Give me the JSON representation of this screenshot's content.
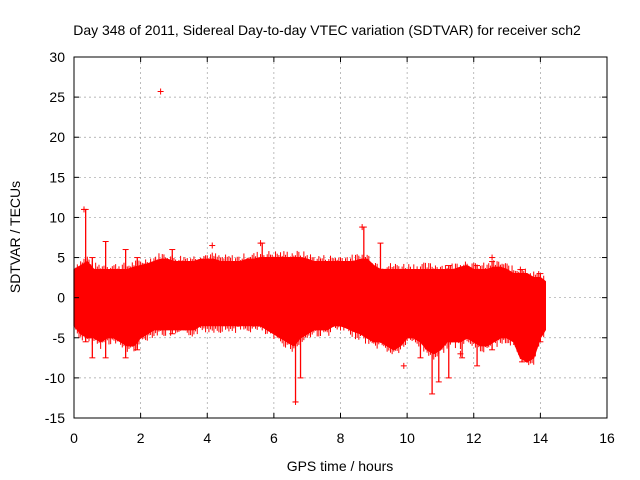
{
  "chart_data": {
    "type": "scatter",
    "title": "Day 348 of 2011, Sidereal Day-to-day VTEC variation (SDTVAR) for receiver sch2",
    "xlabel": "GPS time / hours",
    "ylabel": "SDTVAR / TECUs",
    "xlim": [
      0,
      16
    ],
    "ylim": [
      -15,
      30
    ],
    "xticks": [
      0,
      2,
      4,
      6,
      8,
      10,
      12,
      14,
      16
    ],
    "yticks": [
      -15,
      -10,
      -5,
      0,
      5,
      10,
      15,
      20,
      25,
      30
    ],
    "grid": true,
    "marker": "+",
    "series": [
      {
        "name": "sch2",
        "color": "#ff0000",
        "band": {
          "x": [
            0,
            0.2,
            0.4,
            0.6,
            0.8,
            1.0,
            1.2,
            1.4,
            1.6,
            1.8,
            2.0,
            2.2,
            2.4,
            2.6,
            2.8,
            3.0,
            3.2,
            3.4,
            3.6,
            3.8,
            4.0,
            4.2,
            4.4,
            4.6,
            4.8,
            5.0,
            5.2,
            5.4,
            5.6,
            5.8,
            6.0,
            6.2,
            6.4,
            6.6,
            6.8,
            7.0,
            7.2,
            7.4,
            7.6,
            7.8,
            8.0,
            8.2,
            8.4,
            8.6,
            8.8,
            9.0,
            9.2,
            9.4,
            9.6,
            9.8,
            10.0,
            10.2,
            10.4,
            10.6,
            10.8,
            11.0,
            11.2,
            11.4,
            11.6,
            11.8,
            12.0,
            12.2,
            12.4,
            12.6,
            12.8,
            13.0,
            13.2,
            13.4,
            13.6,
            13.8,
            14.0,
            14.15
          ],
          "upper": [
            3.5,
            4.0,
            4.5,
            3.5,
            3.5,
            3.5,
            3.5,
            3.5,
            3.5,
            3.8,
            4.0,
            4.2,
            4.5,
            4.8,
            4.8,
            4.5,
            4.5,
            4.5,
            4.5,
            4.8,
            4.8,
            4.8,
            4.5,
            4.5,
            4.5,
            4.5,
            4.8,
            4.8,
            5.0,
            5.0,
            5.0,
            5.0,
            5.0,
            5.0,
            5.0,
            4.8,
            4.5,
            4.5,
            4.5,
            4.5,
            4.5,
            4.5,
            4.5,
            4.8,
            4.8,
            4.0,
            3.5,
            3.5,
            3.5,
            3.5,
            3.5,
            3.5,
            3.5,
            3.5,
            3.5,
            3.5,
            3.5,
            3.5,
            3.8,
            4.0,
            3.5,
            3.5,
            3.5,
            3.8,
            3.8,
            3.5,
            3.0,
            3.0,
            3.0,
            2.5,
            2.5,
            2.0
          ],
          "lower": [
            -3.5,
            -4.5,
            -5.0,
            -5.0,
            -5.5,
            -5.0,
            -5.0,
            -5.5,
            -6.0,
            -6.0,
            -5.0,
            -4.5,
            -4.0,
            -4.0,
            -4.0,
            -4.0,
            -4.0,
            -4.0,
            -4.0,
            -3.5,
            -3.5,
            -3.5,
            -3.5,
            -3.5,
            -3.5,
            -3.5,
            -3.5,
            -3.5,
            -3.5,
            -4.0,
            -4.5,
            -5.0,
            -5.5,
            -6.0,
            -5.0,
            -4.5,
            -4.0,
            -4.0,
            -4.0,
            -3.5,
            -3.5,
            -3.8,
            -4.2,
            -4.5,
            -5.0,
            -5.5,
            -5.5,
            -6.0,
            -6.5,
            -6.0,
            -5.0,
            -5.0,
            -5.5,
            -6.5,
            -7.0,
            -6.5,
            -5.5,
            -5.5,
            -5.5,
            -5.0,
            -5.5,
            -6.0,
            -6.0,
            -5.5,
            -5.0,
            -5.0,
            -5.5,
            -7.5,
            -8.0,
            -7.5,
            -5.0,
            -4.0
          ]
        },
        "spikes": [
          {
            "x": 0.35,
            "lo": -5.5,
            "hi": 11.0
          },
          {
            "x": 0.55,
            "lo": -7.5,
            "hi": 5.0
          },
          {
            "x": 0.95,
            "lo": -7.5,
            "hi": 7.0
          },
          {
            "x": 1.55,
            "lo": -7.5,
            "hi": 6.0
          },
          {
            "x": 1.9,
            "lo": -6.5,
            "hi": 5.0
          },
          {
            "x": 2.95,
            "lo": -4.5,
            "hi": 6.0
          },
          {
            "x": 5.65,
            "lo": -3.5,
            "hi": 6.8
          },
          {
            "x": 6.65,
            "lo": -13.0,
            "hi": 5.0
          },
          {
            "x": 6.8,
            "lo": -10.0,
            "hi": 4.5
          },
          {
            "x": 8.7,
            "lo": -3.5,
            "hi": 8.8
          },
          {
            "x": 9.2,
            "lo": -5.5,
            "hi": 6.8
          },
          {
            "x": 10.4,
            "lo": -7.5,
            "hi": 3.5
          },
          {
            "x": 10.75,
            "lo": -12.0,
            "hi": 3.5
          },
          {
            "x": 10.95,
            "lo": -10.5,
            "hi": 3.5
          },
          {
            "x": 11.25,
            "lo": -10.0,
            "hi": 4.0
          },
          {
            "x": 11.65,
            "lo": -7.5,
            "hi": 3.5
          },
          {
            "x": 12.1,
            "lo": -8.5,
            "hi": 4.0
          },
          {
            "x": 12.55,
            "lo": -6.5,
            "hi": 4.5
          },
          {
            "x": 13.45,
            "lo": -8.0,
            "hi": 3.5
          },
          {
            "x": 14.0,
            "lo": -5.5,
            "hi": 3.0
          }
        ],
        "points": [
          {
            "x": 2.6,
            "y": 25.7
          },
          {
            "x": 4.15,
            "y": 6.5
          },
          {
            "x": 5.6,
            "y": 6.8
          },
          {
            "x": 8.65,
            "y": 8.8
          },
          {
            "x": 9.9,
            "y": -8.5
          },
          {
            "x": 12.55,
            "y": 5.0
          },
          {
            "x": 13.4,
            "y": 3.5
          },
          {
            "x": 11.6,
            "y": -7.0
          },
          {
            "x": 6.65,
            "y": -13.0
          },
          {
            "x": 0.3,
            "y": 11.0
          }
        ]
      }
    ]
  }
}
